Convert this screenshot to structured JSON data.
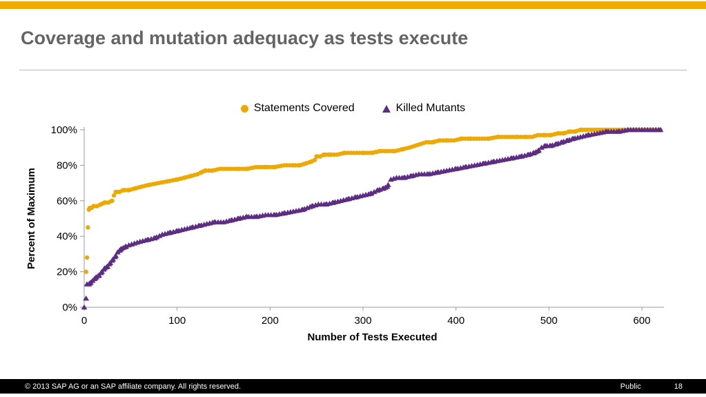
{
  "slide": {
    "title": "Coverage and mutation adequacy as tests execute",
    "accent_color": "#F0AB00"
  },
  "footer": {
    "copyright": "© 2013 SAP AG or an SAP affiliate company. All rights reserved.",
    "classification": "Public",
    "page_number": "18"
  },
  "chart_data": {
    "type": "scatter",
    "title": "",
    "xlabel": "Number of Tests Executed",
    "ylabel": "Percent of Maximum",
    "xlim": [
      0,
      620
    ],
    "ylim": [
      0,
      100
    ],
    "x_ticks": [
      0,
      100,
      200,
      300,
      400,
      500,
      600
    ],
    "y_ticks": [
      0,
      20,
      40,
      60,
      80,
      100
    ],
    "y_tick_suffix": "%",
    "grid": false,
    "legend_position": "top-center",
    "axis_color": "#9a9a9a",
    "series": [
      {
        "name": "Statements Covered",
        "marker": "circle",
        "color": "#EDA900",
        "points": [
          [
            2,
            20
          ],
          [
            3,
            28
          ],
          [
            4,
            45
          ],
          [
            5,
            55
          ],
          [
            6,
            56
          ],
          [
            8,
            56
          ],
          [
            10,
            57
          ],
          [
            14,
            57
          ],
          [
            18,
            58
          ],
          [
            22,
            59
          ],
          [
            26,
            59
          ],
          [
            30,
            60
          ],
          [
            32,
            63
          ],
          [
            34,
            65
          ],
          [
            38,
            65
          ],
          [
            42,
            66
          ],
          [
            48,
            66
          ],
          [
            55,
            67
          ],
          [
            62,
            68
          ],
          [
            70,
            69
          ],
          [
            80,
            70
          ],
          [
            90,
            71
          ],
          [
            100,
            72
          ],
          [
            108,
            73
          ],
          [
            115,
            74
          ],
          [
            122,
            75
          ],
          [
            126,
            76
          ],
          [
            130,
            77
          ],
          [
            138,
            77
          ],
          [
            146,
            78
          ],
          [
            155,
            78
          ],
          [
            165,
            78
          ],
          [
            175,
            78
          ],
          [
            185,
            79
          ],
          [
            195,
            79
          ],
          [
            205,
            79
          ],
          [
            215,
            80
          ],
          [
            225,
            80
          ],
          [
            232,
            80
          ],
          [
            238,
            81
          ],
          [
            244,
            82
          ],
          [
            248,
            83
          ],
          [
            250,
            85
          ],
          [
            254,
            85
          ],
          [
            258,
            86
          ],
          [
            264,
            86
          ],
          [
            272,
            86
          ],
          [
            280,
            87
          ],
          [
            290,
            87
          ],
          [
            300,
            87
          ],
          [
            310,
            87
          ],
          [
            318,
            88
          ],
          [
            326,
            88
          ],
          [
            334,
            88
          ],
          [
            342,
            89
          ],
          [
            350,
            90
          ],
          [
            356,
            91
          ],
          [
            362,
            92
          ],
          [
            368,
            93
          ],
          [
            375,
            93
          ],
          [
            382,
            94
          ],
          [
            390,
            94
          ],
          [
            398,
            94
          ],
          [
            406,
            95
          ],
          [
            415,
            95
          ],
          [
            425,
            95
          ],
          [
            435,
            95
          ],
          [
            445,
            96
          ],
          [
            455,
            96
          ],
          [
            465,
            96
          ],
          [
            475,
            96
          ],
          [
            482,
            96
          ],
          [
            488,
            97
          ],
          [
            495,
            97
          ],
          [
            502,
            97
          ],
          [
            510,
            98
          ],
          [
            516,
            98
          ],
          [
            522,
            99
          ],
          [
            528,
            99
          ],
          [
            534,
            100
          ],
          [
            545,
            100
          ],
          [
            560,
            100
          ],
          [
            580,
            100
          ],
          [
            600,
            100
          ],
          [
            615,
            100
          ],
          [
            620,
            100
          ]
        ]
      },
      {
        "name": "Killed Mutants",
        "marker": "triangle",
        "color": "#5C2D82",
        "points": [
          [
            0,
            0
          ],
          [
            2,
            5
          ],
          [
            3,
            13
          ],
          [
            5,
            13
          ],
          [
            7,
            14
          ],
          [
            9,
            15
          ],
          [
            11,
            16
          ],
          [
            13,
            17
          ],
          [
            16,
            18
          ],
          [
            19,
            20
          ],
          [
            22,
            22
          ],
          [
            25,
            23
          ],
          [
            28,
            25
          ],
          [
            31,
            27
          ],
          [
            34,
            29
          ],
          [
            36,
            31
          ],
          [
            38,
            32
          ],
          [
            40,
            33
          ],
          [
            44,
            34
          ],
          [
            48,
            35
          ],
          [
            54,
            36
          ],
          [
            60,
            37
          ],
          [
            68,
            38
          ],
          [
            76,
            39
          ],
          [
            84,
            41
          ],
          [
            92,
            42
          ],
          [
            100,
            43
          ],
          [
            108,
            44
          ],
          [
            116,
            45
          ],
          [
            124,
            46
          ],
          [
            132,
            47
          ],
          [
            140,
            48
          ],
          [
            150,
            48
          ],
          [
            158,
            49
          ],
          [
            166,
            50
          ],
          [
            175,
            51
          ],
          [
            185,
            51
          ],
          [
            195,
            52
          ],
          [
            205,
            52
          ],
          [
            215,
            53
          ],
          [
            225,
            54
          ],
          [
            235,
            55
          ],
          [
            245,
            57
          ],
          [
            252,
            58
          ],
          [
            260,
            58
          ],
          [
            268,
            59
          ],
          [
            276,
            60
          ],
          [
            284,
            61
          ],
          [
            292,
            62
          ],
          [
            300,
            63
          ],
          [
            308,
            64
          ],
          [
            316,
            66
          ],
          [
            322,
            67
          ],
          [
            326,
            68
          ],
          [
            330,
            72
          ],
          [
            336,
            73
          ],
          [
            344,
            73
          ],
          [
            352,
            74
          ],
          [
            360,
            75
          ],
          [
            370,
            75
          ],
          [
            380,
            76
          ],
          [
            390,
            77
          ],
          [
            400,
            78
          ],
          [
            410,
            79
          ],
          [
            420,
            80
          ],
          [
            430,
            81
          ],
          [
            440,
            82
          ],
          [
            450,
            83
          ],
          [
            460,
            84
          ],
          [
            470,
            85
          ],
          [
            478,
            86
          ],
          [
            484,
            87
          ],
          [
            488,
            88
          ],
          [
            492,
            90
          ],
          [
            496,
            91
          ],
          [
            502,
            91
          ],
          [
            508,
            92
          ],
          [
            514,
            93
          ],
          [
            520,
            94
          ],
          [
            526,
            95
          ],
          [
            534,
            96
          ],
          [
            542,
            97
          ],
          [
            552,
            98
          ],
          [
            562,
            99
          ],
          [
            575,
            99
          ],
          [
            585,
            100
          ],
          [
            600,
            100
          ],
          [
            612,
            100
          ],
          [
            620,
            100
          ]
        ]
      }
    ]
  }
}
